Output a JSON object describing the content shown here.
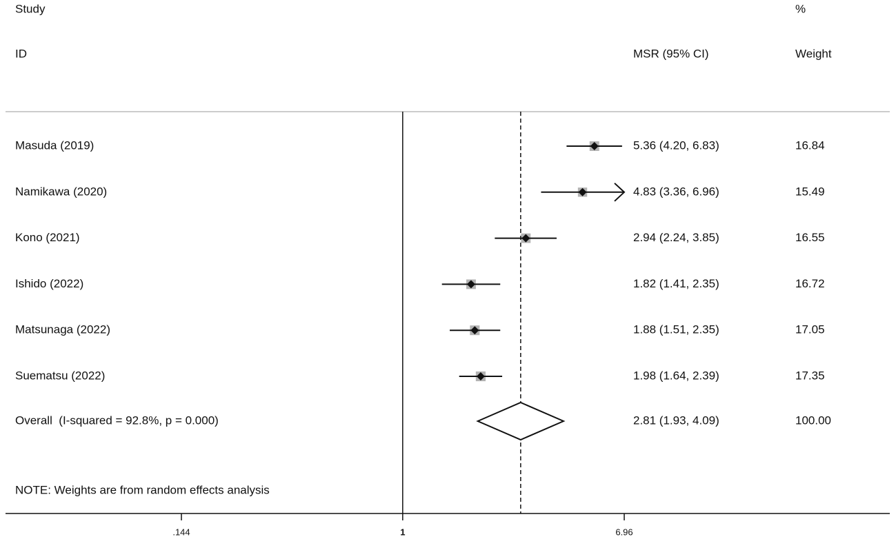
{
  "chart_data": {
    "type": "forest",
    "headers": {
      "study": "Study",
      "id": "ID",
      "pct": "%",
      "msr": "MSR (95% CI)",
      "weight": "Weight"
    },
    "studies": [
      "Masuda (2019)",
      "Namikawa (2020)",
      "Kono (2021)",
      "Ishido (2022)",
      "Matsunaga (2022)",
      "Suematsu (2022)"
    ],
    "values": [
      5.36,
      4.83,
      2.94,
      1.82,
      1.88,
      1.98
    ],
    "lower": [
      4.2,
      3.36,
      2.24,
      1.41,
      1.51,
      1.64
    ],
    "upper": [
      6.83,
      6.96,
      3.85,
      2.35,
      2.35,
      2.39
    ],
    "ci_labels": [
      "5.36 (4.20, 6.83)",
      "4.83 (3.36, 6.96)",
      "2.94 (2.24, 3.85)",
      "1.82 (1.41, 2.35)",
      "1.88 (1.51, 2.35)",
      "1.98 (1.64, 2.39)"
    ],
    "weights": [
      16.84,
      15.49,
      16.55,
      16.72,
      17.05,
      17.35
    ],
    "overall": {
      "label": "Overall  (I-squared = 92.8%, p = 0.000)",
      "value": 2.81,
      "lower": 1.93,
      "upper": 4.09,
      "ci_label": "2.81 (1.93, 4.09)",
      "weight": {
        "value": 100,
        "label": "100.00"
      }
    },
    "note": "NOTE: Weights are from random effects analysis",
    "xscale": "log",
    "xlim": [
      0.144,
      6.96
    ],
    "xticks": [
      {
        "value": 0.144,
        "label": ".144"
      },
      1,
      6.96
    ],
    "null_line": 1
  }
}
